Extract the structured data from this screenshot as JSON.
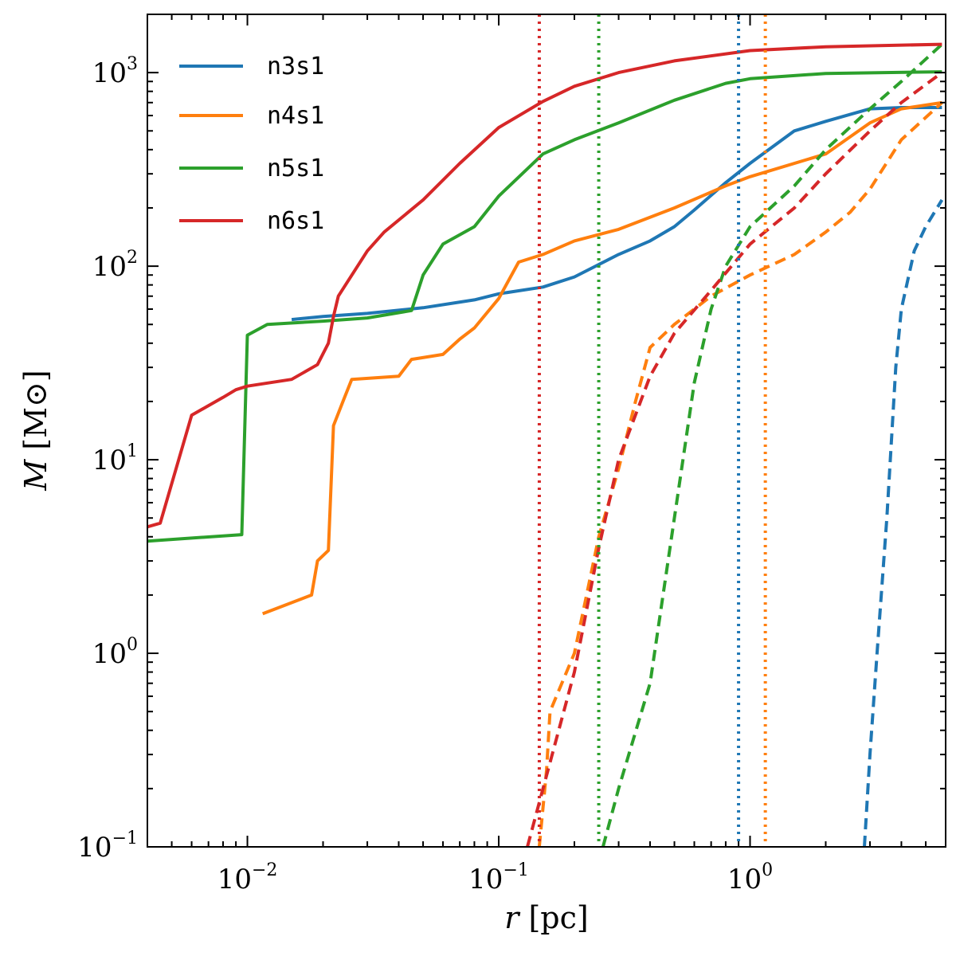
{
  "chart_data": {
    "type": "line",
    "xscale": "log",
    "yscale": "log",
    "xlim": [
      0.004,
      6.0
    ],
    "ylim": [
      0.1,
      2000
    ],
    "xlabel": {
      "var": "r",
      "unit": "[pc]"
    },
    "ylabel": {
      "var": "M",
      "unit": "[M⊙]"
    },
    "x_ticks": [
      {
        "value": 0.01,
        "base": "10",
        "exp": "−2"
      },
      {
        "value": 0.1,
        "base": "10",
        "exp": "−1"
      },
      {
        "value": 1,
        "base": "10",
        "exp": "0"
      }
    ],
    "y_ticks": [
      {
        "value": 0.1,
        "base": "10",
        "exp": "−1"
      },
      {
        "value": 1,
        "base": "10",
        "exp": "0"
      },
      {
        "value": 10,
        "base": "10",
        "exp": "1"
      },
      {
        "value": 100,
        "base": "10",
        "exp": "2"
      },
      {
        "value": 1000,
        "base": "10",
        "exp": "3"
      }
    ],
    "legend": {
      "position": "top-left",
      "entries": [
        "n3s1",
        "n4s1",
        "n5s1",
        "n6s1"
      ]
    },
    "series": [
      {
        "name": "n3s1",
        "color": "#1f77b4",
        "vline": 0.9,
        "solid": [
          [
            0.015,
            53
          ],
          [
            0.02,
            55
          ],
          [
            0.03,
            57
          ],
          [
            0.05,
            61
          ],
          [
            0.08,
            67
          ],
          [
            0.1,
            72
          ],
          [
            0.15,
            78
          ],
          [
            0.2,
            88
          ],
          [
            0.3,
            115
          ],
          [
            0.4,
            135
          ],
          [
            0.5,
            160
          ],
          [
            0.6,
            195
          ],
          [
            0.8,
            270
          ],
          [
            1.0,
            340
          ],
          [
            1.5,
            500
          ],
          [
            2.0,
            560
          ],
          [
            3.0,
            650
          ],
          [
            4.0,
            660
          ],
          [
            5.8,
            660
          ]
        ],
        "dashed": [
          [
            2.85,
            0.1
          ],
          [
            3.0,
            0.3
          ],
          [
            3.2,
            1.0
          ],
          [
            3.5,
            5
          ],
          [
            3.8,
            30
          ],
          [
            4.0,
            60
          ],
          [
            4.5,
            120
          ],
          [
            5.0,
            160
          ],
          [
            5.8,
            220
          ]
        ]
      },
      {
        "name": "n4s1",
        "color": "#ff7f0e",
        "vline": 1.15,
        "solid": [
          [
            0.0115,
            1.6
          ],
          [
            0.018,
            2.0
          ],
          [
            0.019,
            3.0
          ],
          [
            0.021,
            3.4
          ],
          [
            0.022,
            15
          ],
          [
            0.024,
            20
          ],
          [
            0.026,
            26
          ],
          [
            0.04,
            27
          ],
          [
            0.045,
            33
          ],
          [
            0.06,
            35
          ],
          [
            0.07,
            42
          ],
          [
            0.08,
            48
          ],
          [
            0.1,
            68
          ],
          [
            0.12,
            105
          ],
          [
            0.15,
            115
          ],
          [
            0.2,
            135
          ],
          [
            0.3,
            155
          ],
          [
            0.5,
            200
          ],
          [
            0.8,
            260
          ],
          [
            1.0,
            290
          ],
          [
            2.0,
            380
          ],
          [
            3.0,
            550
          ],
          [
            4.0,
            650
          ],
          [
            5.8,
            700
          ]
        ],
        "dashed": [
          [
            0.145,
            0.1
          ],
          [
            0.155,
            0.25
          ],
          [
            0.16,
            0.5
          ],
          [
            0.2,
            1.0
          ],
          [
            0.25,
            4
          ],
          [
            0.3,
            9
          ],
          [
            0.35,
            20
          ],
          [
            0.4,
            38
          ],
          [
            0.5,
            50
          ],
          [
            0.7,
            70
          ],
          [
            1.0,
            90
          ],
          [
            1.5,
            115
          ],
          [
            2.0,
            150
          ],
          [
            2.5,
            190
          ],
          [
            3.0,
            250
          ],
          [
            4.0,
            450
          ],
          [
            5.8,
            700
          ]
        ]
      },
      {
        "name": "n5s1",
        "color": "#2ca02c",
        "vline": 0.25,
        "solid": [
          [
            0.004,
            3.8
          ],
          [
            0.0095,
            4.1
          ],
          [
            0.01,
            44
          ],
          [
            0.012,
            50
          ],
          [
            0.02,
            52
          ],
          [
            0.03,
            54
          ],
          [
            0.045,
            59
          ],
          [
            0.05,
            90
          ],
          [
            0.06,
            130
          ],
          [
            0.08,
            160
          ],
          [
            0.1,
            230
          ],
          [
            0.15,
            380
          ],
          [
            0.2,
            450
          ],
          [
            0.3,
            550
          ],
          [
            0.5,
            720
          ],
          [
            0.8,
            880
          ],
          [
            1.0,
            930
          ],
          [
            2.0,
            990
          ],
          [
            5.8,
            1010
          ]
        ],
        "dashed": [
          [
            0.26,
            0.1
          ],
          [
            0.3,
            0.2
          ],
          [
            0.4,
            0.7
          ],
          [
            0.5,
            5
          ],
          [
            0.6,
            25
          ],
          [
            0.7,
            60
          ],
          [
            0.8,
            100
          ],
          [
            1.0,
            160
          ],
          [
            1.5,
            260
          ],
          [
            2.0,
            400
          ],
          [
            3.0,
            650
          ],
          [
            4.0,
            900
          ],
          [
            5.8,
            1400
          ]
        ]
      },
      {
        "name": "n6s1",
        "color": "#d62728",
        "vline": 0.145,
        "solid": [
          [
            0.004,
            4.5
          ],
          [
            0.0045,
            4.7
          ],
          [
            0.006,
            17
          ],
          [
            0.008,
            21
          ],
          [
            0.009,
            23
          ],
          [
            0.01,
            24
          ],
          [
            0.015,
            26
          ],
          [
            0.019,
            31
          ],
          [
            0.021,
            40
          ],
          [
            0.022,
            55
          ],
          [
            0.023,
            70
          ],
          [
            0.03,
            120
          ],
          [
            0.035,
            150
          ],
          [
            0.05,
            220
          ],
          [
            0.07,
            340
          ],
          [
            0.1,
            520
          ],
          [
            0.15,
            710
          ],
          [
            0.2,
            850
          ],
          [
            0.3,
            1000
          ],
          [
            0.5,
            1150
          ],
          [
            1.0,
            1300
          ],
          [
            2.0,
            1360
          ],
          [
            5.8,
            1400
          ]
        ],
        "dashed": [
          [
            0.13,
            0.1
          ],
          [
            0.15,
            0.2
          ],
          [
            0.2,
            0.8
          ],
          [
            0.25,
            3.5
          ],
          [
            0.3,
            10
          ],
          [
            0.4,
            27
          ],
          [
            0.5,
            45
          ],
          [
            0.7,
            75
          ],
          [
            1.0,
            130
          ],
          [
            1.5,
            200
          ],
          [
            2.0,
            300
          ],
          [
            3.0,
            500
          ],
          [
            4.0,
            700
          ],
          [
            5.8,
            1000
          ]
        ]
      }
    ]
  }
}
